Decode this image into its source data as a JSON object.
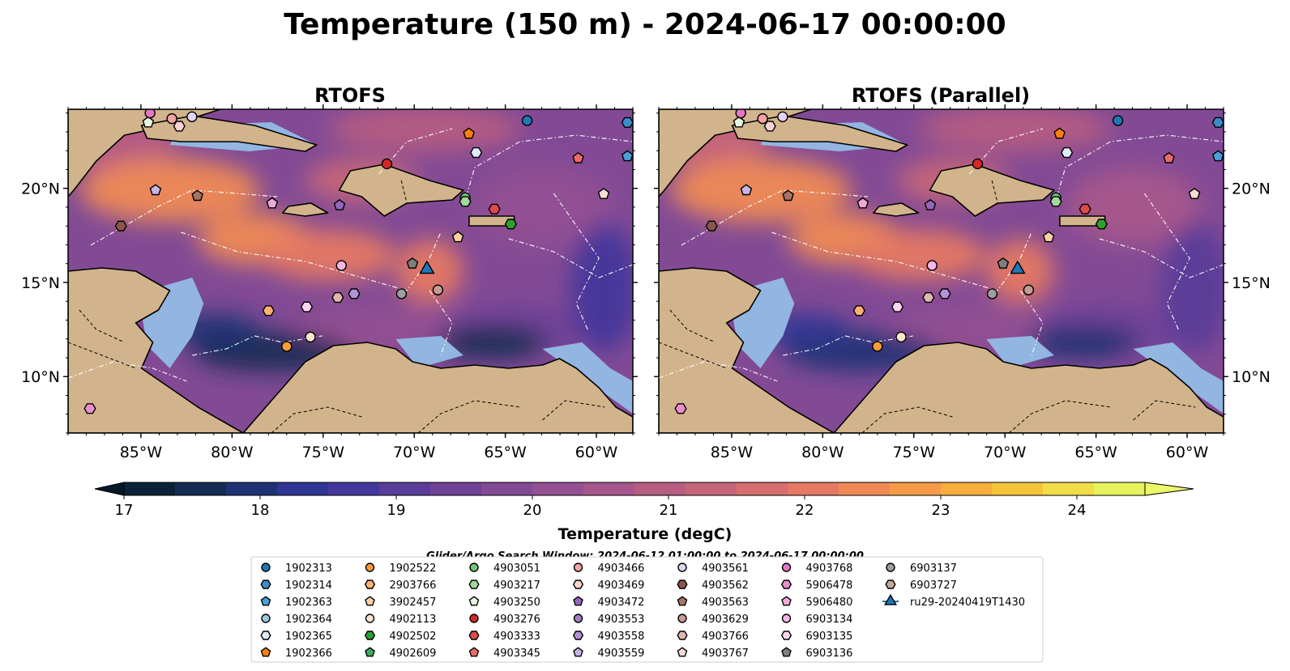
{
  "chart_data": {
    "type": "map",
    "title": "Temperature (150 m) - 2024-06-17 00:00:00",
    "search_window": "Glider/Argo Search Window: 2024-06-12 01:00:00 to 2024-06-17 00:00:00",
    "panels": [
      {
        "name": "RTOFS"
      },
      {
        "name": "RTOFS (Parallel)"
      }
    ],
    "lon_range": [
      -89,
      -58
    ],
    "lat_range": [
      7,
      24.2
    ],
    "lon_ticks": [
      -85,
      -80,
      -75,
      -70,
      -65,
      -60
    ],
    "lon_tick_labels": [
      "85°W",
      "80°W",
      "75°W",
      "70°W",
      "65°W",
      "60°W"
    ],
    "lat_ticks": [
      10,
      15,
      20
    ],
    "lat_tick_labels": [
      "10°N",
      "15°N",
      "20°N"
    ],
    "colorbar": {
      "label": "Temperature (degC)",
      "min": 17,
      "max": 24.5,
      "step": 0.5,
      "extend": "both",
      "ticks": [
        17,
        18,
        19,
        20,
        21,
        22,
        23,
        24
      ],
      "tick_labels": [
        "17",
        "18",
        "19",
        "20",
        "21",
        "22",
        "23",
        "24"
      ],
      "colors": [
        "#0a2239",
        "#142c52",
        "#1e3274",
        "#2e3592",
        "#43379b",
        "#5a3c99",
        "#6f4197",
        "#824a95",
        "#945092",
        "#a6568b",
        "#b65d81",
        "#c66578",
        "#d66d6e",
        "#e57963",
        "#ef8a55",
        "#f59b47",
        "#f8ae3d",
        "#f6c43a",
        "#f1dc4a",
        "#e6f35c"
      ],
      "under_color": "#061827",
      "over_color": "#edf76a"
    },
    "colors": {
      "land": "#d2b48c",
      "shelf": "#93b5e1",
      "deep_shelf": "#0f2a3f"
    },
    "legend": [
      {
        "label": "1902313",
        "color": "#1f77b4",
        "marker": "circle"
      },
      {
        "label": "1902314",
        "color": "#3a8ccb",
        "marker": "hexagon"
      },
      {
        "label": "1902363",
        "color": "#4aa0d8",
        "marker": "pentagon"
      },
      {
        "label": "1902364",
        "color": "#9ecae1",
        "marker": "circle"
      },
      {
        "label": "1902365",
        "color": "#deebf7",
        "marker": "hexagon"
      },
      {
        "label": "1902366",
        "color": "#ff7f0e",
        "marker": "pentagon"
      },
      {
        "label": "1902522",
        "color": "#fd9a3a",
        "marker": "circle"
      },
      {
        "label": "2903766",
        "color": "#fdb172",
        "marker": "hexagon"
      },
      {
        "label": "3902457",
        "color": "#fdd0a2",
        "marker": "pentagon"
      },
      {
        "label": "4902113",
        "color": "#fee6ce",
        "marker": "circle"
      },
      {
        "label": "4902502",
        "color": "#2ca02c",
        "marker": "hexagon"
      },
      {
        "label": "4902609",
        "color": "#41ab5d",
        "marker": "pentagon"
      },
      {
        "label": "4903051",
        "color": "#74c476",
        "marker": "circle"
      },
      {
        "label": "4903217",
        "color": "#a1d99b",
        "marker": "hexagon"
      },
      {
        "label": "4903250",
        "color": "#e5f5e0",
        "marker": "pentagon"
      },
      {
        "label": "4903276",
        "color": "#d62728",
        "marker": "circle"
      },
      {
        "label": "4903333",
        "color": "#e04a4a",
        "marker": "hexagon"
      },
      {
        "label": "4903345",
        "color": "#ec6a6a",
        "marker": "pentagon"
      },
      {
        "label": "4903466",
        "color": "#f4a3a3",
        "marker": "circle"
      },
      {
        "label": "4903469",
        "color": "#fbd2d2",
        "marker": "hexagon"
      },
      {
        "label": "4903472",
        "color": "#9467bd",
        "marker": "pentagon"
      },
      {
        "label": "4903553",
        "color": "#a07fc8",
        "marker": "circle"
      },
      {
        "label": "4903558",
        "color": "#b294d6",
        "marker": "hexagon"
      },
      {
        "label": "4903559",
        "color": "#c8b4e6",
        "marker": "pentagon"
      },
      {
        "label": "4903561",
        "color": "#e2d4f2",
        "marker": "circle"
      },
      {
        "label": "4903562",
        "color": "#8c564b",
        "marker": "hexagon"
      },
      {
        "label": "4903563",
        "color": "#a87466",
        "marker": "pentagon"
      },
      {
        "label": "4903629",
        "color": "#c49c94",
        "marker": "circle"
      },
      {
        "label": "4903766",
        "color": "#e0b8ae",
        "marker": "hexagon"
      },
      {
        "label": "4903767",
        "color": "#f6dcd4",
        "marker": "pentagon"
      },
      {
        "label": "4903768",
        "color": "#e377c2",
        "marker": "circle"
      },
      {
        "label": "5906478",
        "color": "#ea8fce",
        "marker": "hexagon"
      },
      {
        "label": "5906480",
        "color": "#f2a9da",
        "marker": "pentagon"
      },
      {
        "label": "6903134",
        "color": "#f7b6e4",
        "marker": "circle"
      },
      {
        "label": "6903135",
        "color": "#fbd5ef",
        "marker": "hexagon"
      },
      {
        "label": "6903136",
        "color": "#7f7f7f",
        "marker": "pentagon"
      },
      {
        "label": "6903137",
        "color": "#9e9e9e",
        "marker": "circle"
      },
      {
        "label": "6903727",
        "color": "#c7a99f",
        "marker": "hexagon"
      },
      {
        "label": "ru29-20240419T1430",
        "color": "#1f77b4",
        "marker": "triangle-line"
      }
    ],
    "points": [
      {
        "id": "1902313",
        "lon": -63.8,
        "lat": 23.6
      },
      {
        "id": "1902314",
        "lon": -58.3,
        "lat": 23.5
      },
      {
        "id": "1902363",
        "lon": -58.3,
        "lat": 21.7
      },
      {
        "id": "1902365",
        "lon": -66.6,
        "lat": 21.9
      },
      {
        "id": "1902366",
        "lon": -67.0,
        "lat": 22.9
      },
      {
        "id": "1902522",
        "lon": -77.0,
        "lat": 11.6
      },
      {
        "id": "2903766",
        "lon": -78.0,
        "lat": 13.5
      },
      {
        "id": "3902457",
        "lon": -67.6,
        "lat": 17.4
      },
      {
        "id": "4902113",
        "lon": -75.7,
        "lat": 12.1
      },
      {
        "id": "4902502",
        "lon": -64.7,
        "lat": 18.1
      },
      {
        "id": "4903051",
        "lon": -67.2,
        "lat": 19.5
      },
      {
        "id": "4903217",
        "lon": -67.2,
        "lat": 19.3
      },
      {
        "id": "4903250",
        "lon": -84.6,
        "lat": 23.5
      },
      {
        "id": "4903276",
        "lon": -71.5,
        "lat": 21.3
      },
      {
        "id": "4903333",
        "lon": -65.6,
        "lat": 18.9
      },
      {
        "id": "4903345",
        "lon": -61.0,
        "lat": 21.6
      },
      {
        "id": "4903466",
        "lon": -83.3,
        "lat": 23.7
      },
      {
        "id": "4903469",
        "lon": -82.9,
        "lat": 23.3
      },
      {
        "id": "4903472",
        "lon": -74.1,
        "lat": 19.1
      },
      {
        "id": "4903558",
        "lon": -73.3,
        "lat": 14.4
      },
      {
        "id": "4903559",
        "lon": -84.2,
        "lat": 19.9
      },
      {
        "id": "4903561",
        "lon": -82.2,
        "lat": 23.8
      },
      {
        "id": "4903562",
        "lon": -86.1,
        "lat": 18.0
      },
      {
        "id": "4903563",
        "lon": -81.9,
        "lat": 19.6
      },
      {
        "id": "4903629",
        "lon": -68.7,
        "lat": 14.6
      },
      {
        "id": "4903766",
        "lon": -74.2,
        "lat": 14.2
      },
      {
        "id": "4903767",
        "lon": -59.6,
        "lat": 19.7
      },
      {
        "id": "4903768",
        "lon": -84.5,
        "lat": 24.0
      },
      {
        "id": "5906478",
        "lon": -87.8,
        "lat": 8.3
      },
      {
        "id": "5906480",
        "lon": -77.8,
        "lat": 19.2
      },
      {
        "id": "6903134",
        "lon": -74.0,
        "lat": 15.9
      },
      {
        "id": "6903135",
        "lon": -75.9,
        "lat": 13.7
      },
      {
        "id": "6903136",
        "lon": -70.1,
        "lat": 16.0
      },
      {
        "id": "6903137",
        "lon": -70.7,
        "lat": 14.4
      },
      {
        "id": "ru29-20240419T1430",
        "lon": -69.3,
        "lat": 15.7
      }
    ]
  }
}
